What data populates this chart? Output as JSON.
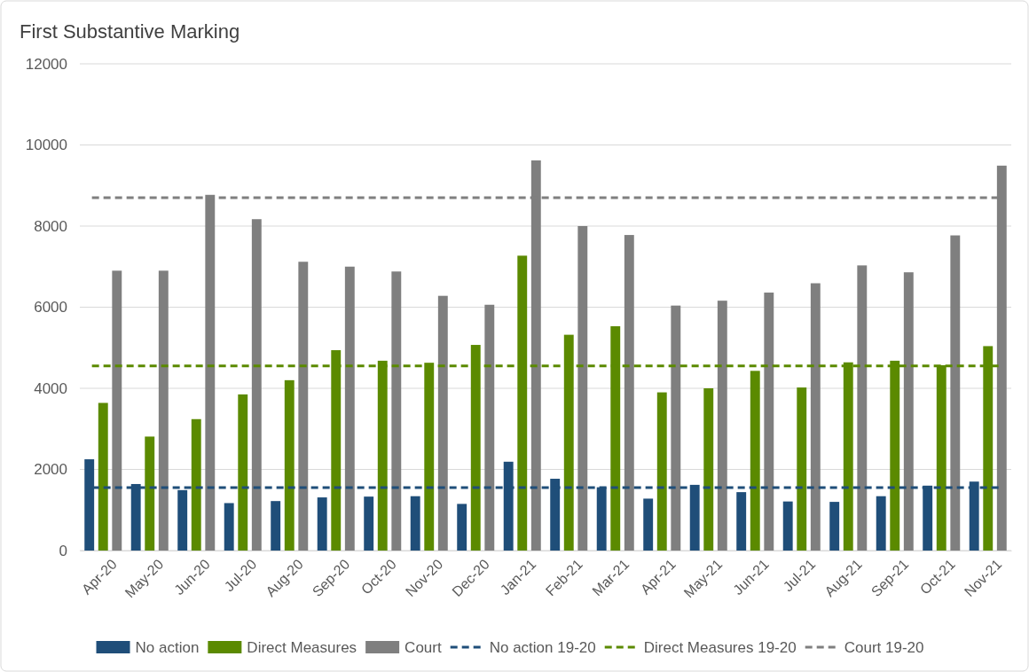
{
  "chart_data": {
    "type": "bar",
    "title": "First Substantive Marking",
    "categories": [
      "Apr-20",
      "May-20",
      "Jun-20",
      "Jul-20",
      "Aug-20",
      "Sep-20",
      "Oct-20",
      "Nov-20",
      "Dec-20",
      "Jan-21",
      "Feb-21",
      "Mar-21",
      "Apr-21",
      "May-21",
      "Jun-21",
      "Jul-21",
      "Aug-21",
      "Sep-21",
      "Oct-21",
      "Nov-21"
    ],
    "series": [
      {
        "name": "No action",
        "color": "#1f4e79",
        "values": [
          2250,
          1640,
          1490,
          1170,
          1220,
          1310,
          1330,
          1340,
          1150,
          2190,
          1770,
          1560,
          1280,
          1620,
          1440,
          1210,
          1200,
          1340,
          1600,
          1700
        ]
      },
      {
        "name": "Direct Measures",
        "color": "#5b8a00",
        "values": [
          3640,
          2810,
          3240,
          3850,
          4200,
          4940,
          4680,
          4630,
          5070,
          7270,
          5320,
          5530,
          3900,
          4000,
          4430,
          4020,
          4640,
          4680,
          4570,
          5040
        ]
      },
      {
        "name": "Court",
        "color": "#7f7f7f",
        "values": [
          6900,
          6900,
          8770,
          8170,
          7120,
          7000,
          6880,
          6280,
          6060,
          9620,
          8000,
          7780,
          6040,
          6160,
          6360,
          6590,
          7030,
          6860,
          7770,
          9490
        ]
      }
    ],
    "ref_lines": [
      {
        "axis": "y",
        "value": 1550,
        "label": "No action 19-20",
        "color": "#1f4e79",
        "line_style": "dashed"
      },
      {
        "axis": "y",
        "value": 4550,
        "label": "Direct Measures 19-20",
        "color": "#5b8a00",
        "line_style": "dashed"
      },
      {
        "axis": "y",
        "value": 8700,
        "label": "Court 19-20",
        "color": "#7f7f7f",
        "line_style": "dashed"
      }
    ],
    "ylim": [
      0,
      12000
    ],
    "yticks": [
      0,
      2000,
      4000,
      6000,
      8000,
      10000,
      12000
    ],
    "grid": "y",
    "legend": "bottom"
  }
}
